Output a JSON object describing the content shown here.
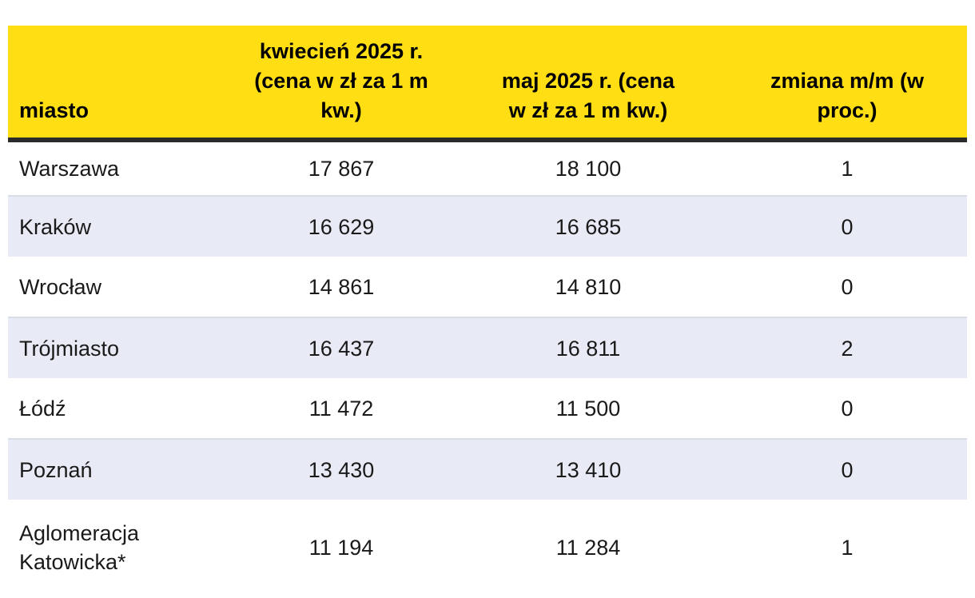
{
  "chart_data": {
    "type": "table",
    "columns": [
      "miasto",
      "kwiecień 2025 r. (cena w zł za 1 m kw.)",
      "maj 2025 r. (cena w zł za 1 m kw.)",
      "zmiana m/m (w proc.)"
    ],
    "rows": [
      [
        "Warszawa",
        "17 867",
        "18 100",
        "1"
      ],
      [
        "Kraków",
        "16 629",
        "16 685",
        "0"
      ],
      [
        "Wrocław",
        "14 861",
        "14 810",
        "0"
      ],
      [
        "Trójmiasto",
        "16 437",
        "16 811",
        "2"
      ],
      [
        "Łódź",
        "11 472",
        "11 500",
        "0"
      ],
      [
        "Poznań",
        "13 430",
        "13 410",
        "0"
      ],
      [
        "Aglomeracja Katowicka*",
        "11 194",
        "11 284",
        "1"
      ]
    ],
    "layout_hints": {
      "header_align": "center (city column left, bottom-aligned)",
      "zebra_striping": "even rows shaded"
    }
  },
  "colors": {
    "header_bg": "#FFDE14",
    "header_rule": "#2B2B2B",
    "row_alt_bg": "#E8EAF5",
    "row_alt_line": "#D9DBE7",
    "cell_text": "#1A1A1A",
    "header_text": "#000000"
  }
}
